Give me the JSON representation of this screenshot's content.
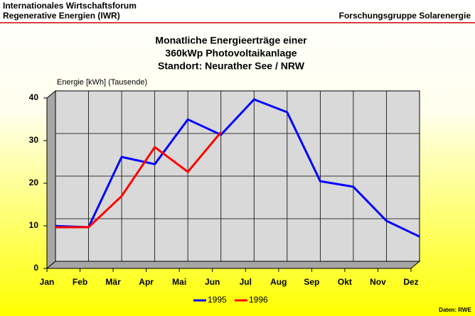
{
  "header": {
    "left": [
      "Internationales Wirtschaftsforum",
      "Regenerative Energien (IWR)"
    ],
    "right": "Forschungsgruppe Solarenergie"
  },
  "chart_data": {
    "type": "line",
    "title": [
      "Monatliche Energieerträge einer",
      "360kWp Photovoltaikanlage",
      "Standort: Neurather See / NRW"
    ],
    "y_label": "Energie [kWh] (Tausende)",
    "categories": [
      "Jan",
      "Feb",
      "Mär",
      "Apr",
      "Mai",
      "Jun",
      "Jul",
      "Aug",
      "Sep",
      "Okt",
      "Nov",
      "Dez"
    ],
    "series": [
      {
        "name": "1995",
        "color": "#0000ff",
        "values": [
          8.3,
          8.0,
          24.5,
          22.8,
          33.3,
          29.7,
          38.0,
          35.0,
          18.8,
          17.5,
          9.5,
          5.8
        ]
      },
      {
        "name": "1996",
        "color": "#ff0000",
        "values": [
          8.0,
          8.0,
          15.3,
          26.8,
          21.0,
          30.3,
          null,
          null,
          null,
          null,
          null,
          null
        ]
      }
    ],
    "ylim": [
      0,
      40
    ],
    "yticks": [
      0,
      10,
      20,
      30,
      40
    ],
    "grid": true,
    "legend": "bottom"
  },
  "source": "Daten: RWE"
}
